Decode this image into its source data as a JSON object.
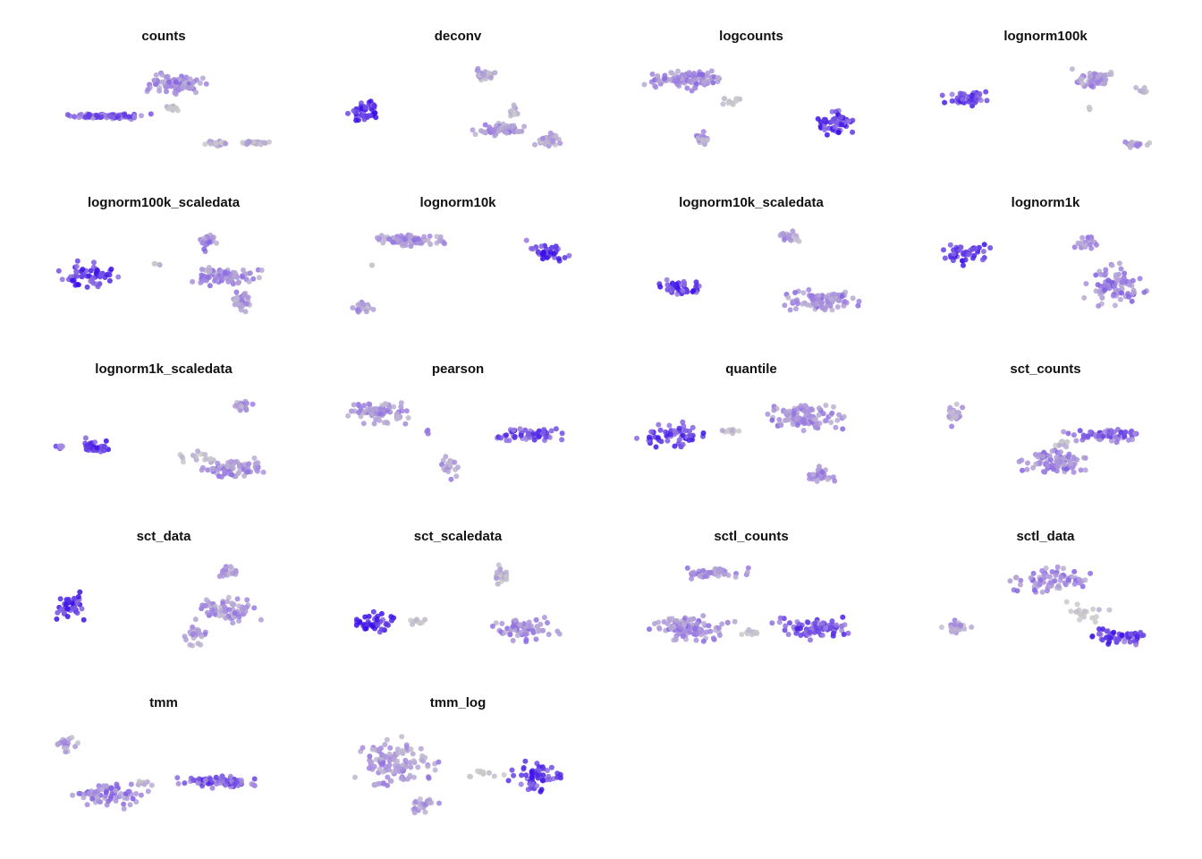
{
  "chart_data": {
    "type": "scatter",
    "layout": "facet grid, 4 columns, no axes, no legend",
    "color_scale": {
      "low": "#c9c9c9",
      "mid": "#a285e0",
      "high": "#3b0fe8"
    },
    "panels": [
      {
        "title": "counts",
        "clusters": [
          {
            "x": [
              150,
              240
            ],
            "y": [
              78,
              108
            ],
            "n": 110,
            "w": 0.4
          },
          {
            "x": [
              62,
              175
            ],
            "y": [
              126,
              134
            ],
            "n": 110,
            "w": 0.6
          },
          {
            "x": [
              175,
              208
            ],
            "y": [
              117,
              124
            ],
            "n": 14,
            "w": 0.05
          },
          {
            "x": [
              228,
              260
            ],
            "y": [
              156,
              165
            ],
            "n": 22,
            "w": 0.2
          },
          {
            "x": [
              262,
              305
            ],
            "y": [
              156,
              163
            ],
            "n": 24,
            "w": 0.15
          }
        ]
      },
      {
        "title": "deconv",
        "clusters": [
          {
            "x": [
              528,
              556
            ],
            "y": [
              74,
              92
            ],
            "n": 30,
            "w": 0.3
          },
          {
            "x": [
              560,
              588
            ],
            "y": [
              116,
              136
            ],
            "n": 10,
            "w": 0.05
          },
          {
            "x": [
              385,
              432
            ],
            "y": [
              106,
              144
            ],
            "n": 45,
            "w": 0.85
          },
          {
            "x": [
              524,
              595
            ],
            "y": [
              136,
              154
            ],
            "n": 60,
            "w": 0.4
          },
          {
            "x": [
              592,
              634
            ],
            "y": [
              148,
              165
            ],
            "n": 35,
            "w": 0.3
          }
        ]
      },
      {
        "title": "logcounts",
        "clusters": [
          {
            "x": [
              712,
              818
            ],
            "y": [
              74,
              104
            ],
            "n": 110,
            "w": 0.4
          },
          {
            "x": [
              790,
              842
            ],
            "y": [
              104,
              122
            ],
            "n": 12,
            "w": 0.05
          },
          {
            "x": [
              908,
              964
            ],
            "y": [
              118,
              156
            ],
            "n": 55,
            "w": 0.8
          },
          {
            "x": [
              770,
              800
            ],
            "y": [
              144,
              164
            ],
            "n": 30,
            "w": 0.3
          }
        ]
      },
      {
        "title": "lognorm100k",
        "clusters": [
          {
            "x": [
              1048,
              1120
            ],
            "y": [
              100,
              120
            ],
            "n": 45,
            "w": 0.75
          },
          {
            "x": [
              1192,
              1256
            ],
            "y": [
              72,
              102
            ],
            "n": 60,
            "w": 0.35
          },
          {
            "x": [
              1265,
              1292
            ],
            "y": [
              96,
              106
            ],
            "n": 8,
            "w": 0.05
          },
          {
            "x": [
              1215,
              1222
            ],
            "y": [
              118,
              124
            ],
            "n": 3,
            "w": 0.05
          },
          {
            "x": [
              1254,
              1290
            ],
            "y": [
              156,
              166
            ],
            "n": 22,
            "w": 0.3
          }
        ]
      },
      {
        "title": "lognorm100k_scaledata",
        "clusters": [
          {
            "x": [
              57,
              140
            ],
            "y": [
              290,
              326
            ],
            "n": 55,
            "w": 0.8
          },
          {
            "x": [
              170,
              182
            ],
            "y": [
              292,
              300
            ],
            "n": 4,
            "w": 0.05
          },
          {
            "x": [
              200,
              302
            ],
            "y": [
              296,
              322
            ],
            "n": 80,
            "w": 0.4
          },
          {
            "x": [
              215,
              250
            ],
            "y": [
              258,
              284
            ],
            "n": 25,
            "w": 0.4
          },
          {
            "x": [
              255,
              285
            ],
            "y": [
              322,
              352
            ],
            "n": 30,
            "w": 0.35
          }
        ]
      },
      {
        "title": "lognorm10k",
        "clusters": [
          {
            "x": [
              404,
              518
            ],
            "y": [
              260,
              276
            ],
            "n": 90,
            "w": 0.35
          },
          {
            "x": [
              580,
              642
            ],
            "y": [
              266,
              298
            ],
            "n": 40,
            "w": 0.8
          },
          {
            "x": [
              412,
              420
            ],
            "y": [
              294,
              300
            ],
            "n": 2,
            "w": 0.05
          },
          {
            "x": [
              390,
              422
            ],
            "y": [
              336,
              352
            ],
            "n": 25,
            "w": 0.3
          }
        ]
      },
      {
        "title": "lognorm10k_scaledata",
        "clusters": [
          {
            "x": [
              866,
              896
            ],
            "y": [
              256,
              272
            ],
            "n": 22,
            "w": 0.3
          },
          {
            "x": [
              720,
              798
            ],
            "y": [
              308,
              334
            ],
            "n": 40,
            "w": 0.8
          },
          {
            "x": [
              866,
              970
            ],
            "y": [
              318,
              354
            ],
            "n": 90,
            "w": 0.4
          }
        ]
      },
      {
        "title": "lognorm1k",
        "clusters": [
          {
            "x": [
              1045,
              1120
            ],
            "y": [
              268,
              300
            ],
            "n": 45,
            "w": 0.8
          },
          {
            "x": [
              1194,
              1232
            ],
            "y": [
              260,
              282
            ],
            "n": 22,
            "w": 0.35
          },
          {
            "x": [
              1200,
              1290
            ],
            "y": [
              290,
              350
            ],
            "n": 80,
            "w": 0.45
          }
        ]
      },
      {
        "title": "lognorm1k_scaledata",
        "clusters": [
          {
            "x": [
              60,
              74
            ],
            "y": [
              496,
              503
            ],
            "n": 6,
            "w": 0.6
          },
          {
            "x": [
              84,
              130
            ],
            "y": [
              486,
              512
            ],
            "n": 32,
            "w": 0.85
          },
          {
            "x": [
              258,
              286
            ],
            "y": [
              446,
              460
            ],
            "n": 22,
            "w": 0.3
          },
          {
            "x": [
              195,
              246
            ],
            "y": [
              502,
              520
            ],
            "n": 18,
            "w": 0.05
          },
          {
            "x": [
              212,
              308
            ],
            "y": [
              510,
              537
            ],
            "n": 75,
            "w": 0.4
          }
        ]
      },
      {
        "title": "pearson",
        "clusters": [
          {
            "x": [
              382,
              472
            ],
            "y": [
              446,
              478
            ],
            "n": 75,
            "w": 0.35
          },
          {
            "x": [
              474,
              484
            ],
            "y": [
              480,
              488
            ],
            "n": 3,
            "w": 0.4
          },
          {
            "x": [
              544,
              636
            ],
            "y": [
              474,
              496
            ],
            "n": 60,
            "w": 0.7
          },
          {
            "x": [
              484,
              524
            ],
            "y": [
              506,
              538
            ],
            "n": 25,
            "w": 0.35
          }
        ]
      },
      {
        "title": "quantile",
        "clusters": [
          {
            "x": [
              708,
              800
            ],
            "y": [
              468,
              506
            ],
            "n": 55,
            "w": 0.8
          },
          {
            "x": [
              800,
              842
            ],
            "y": [
              478,
              486
            ],
            "n": 10,
            "w": 0.05
          },
          {
            "x": [
              842,
              962
            ],
            "y": [
              444,
              488
            ],
            "n": 100,
            "w": 0.4
          },
          {
            "x": [
              892,
              942
            ],
            "y": [
              520,
              540
            ],
            "n": 30,
            "w": 0.35
          }
        ]
      },
      {
        "title": "sct_counts",
        "clusters": [
          {
            "x": [
              1054,
              1080
            ],
            "y": [
              442,
              480
            ],
            "n": 22,
            "w": 0.3
          },
          {
            "x": [
              1176,
              1296
            ],
            "y": [
              476,
              496
            ],
            "n": 60,
            "w": 0.6
          },
          {
            "x": [
              1176,
              1200
            ],
            "y": [
              488,
              504
            ],
            "n": 10,
            "w": 0.05
          },
          {
            "x": [
              1122,
              1240
            ],
            "y": [
              500,
              536
            ],
            "n": 85,
            "w": 0.45
          }
        ]
      },
      {
        "title": "sct_data",
        "clusters": [
          {
            "x": [
              56,
              102
            ],
            "y": [
              656,
              702
            ],
            "n": 40,
            "w": 0.85
          },
          {
            "x": [
              238,
              278
            ],
            "y": [
              630,
              650
            ],
            "n": 25,
            "w": 0.3
          },
          {
            "x": [
              206,
              305
            ],
            "y": [
              664,
              700
            ],
            "n": 70,
            "w": 0.35
          },
          {
            "x": [
              202,
              236
            ],
            "y": [
              698,
              724
            ],
            "n": 25,
            "w": 0.35
          }
        ]
      },
      {
        "title": "sct_scaledata",
        "clusters": [
          {
            "x": [
              388,
              446
            ],
            "y": [
              680,
              712
            ],
            "n": 40,
            "w": 0.85
          },
          {
            "x": [
              448,
              488
            ],
            "y": [
              688,
              702
            ],
            "n": 10,
            "w": 0.05
          },
          {
            "x": [
              544,
              576
            ],
            "y": [
              628,
              660
            ],
            "n": 22,
            "w": 0.15
          },
          {
            "x": [
              540,
              638
            ],
            "y": [
              684,
              722
            ],
            "n": 65,
            "w": 0.4
          }
        ]
      },
      {
        "title": "sctl_counts",
        "clusters": [
          {
            "x": [
              744,
              846
            ],
            "y": [
              632,
              648
            ],
            "n": 50,
            "w": 0.35
          },
          {
            "x": [
              712,
              830
            ],
            "y": [
              684,
              722
            ],
            "n": 100,
            "w": 0.4
          },
          {
            "x": [
              820,
              862
            ],
            "y": [
              702,
              712
            ],
            "n": 12,
            "w": 0.05
          },
          {
            "x": [
              850,
              968
            ],
            "y": [
              686,
              718
            ],
            "n": 80,
            "w": 0.7
          }
        ]
      },
      {
        "title": "sctl_data",
        "clusters": [
          {
            "x": [
              1118,
              1230
            ],
            "y": [
              630,
              670
            ],
            "n": 70,
            "w": 0.4
          },
          {
            "x": [
              1180,
              1246
            ],
            "y": [
              670,
              700
            ],
            "n": 18,
            "w": 0.05
          },
          {
            "x": [
              1048,
              1092
            ],
            "y": [
              692,
              710
            ],
            "n": 25,
            "w": 0.3
          },
          {
            "x": [
              1200,
              1296
            ],
            "y": [
              700,
              722
            ],
            "n": 55,
            "w": 0.75
          }
        ]
      },
      {
        "title": "tmm",
        "clusters": [
          {
            "x": [
              54,
              94
            ],
            "y": [
              818,
              844
            ],
            "n": 18,
            "w": 0.3
          },
          {
            "x": [
              62,
              178
            ],
            "y": [
              872,
              906
            ],
            "n": 75,
            "w": 0.45
          },
          {
            "x": [
              140,
              180
            ],
            "y": [
              872,
              880
            ],
            "n": 10,
            "w": 0.05
          },
          {
            "x": [
              180,
              306
            ],
            "y": [
              866,
              882
            ],
            "n": 70,
            "w": 0.65
          }
        ]
      },
      {
        "title": "tmm_log",
        "clusters": [
          {
            "x": [
              382,
              502
            ],
            "y": [
              816,
              890
            ],
            "n": 110,
            "w": 0.35
          },
          {
            "x": [
              448,
              496
            ],
            "y": [
              888,
              914
            ],
            "n": 22,
            "w": 0.3
          },
          {
            "x": [
              518,
              566
            ],
            "y": [
              860,
              870
            ],
            "n": 12,
            "w": 0.05
          },
          {
            "x": [
              560,
              636
            ],
            "y": [
              846,
              890
            ],
            "n": 55,
            "w": 0.8
          }
        ]
      }
    ]
  }
}
